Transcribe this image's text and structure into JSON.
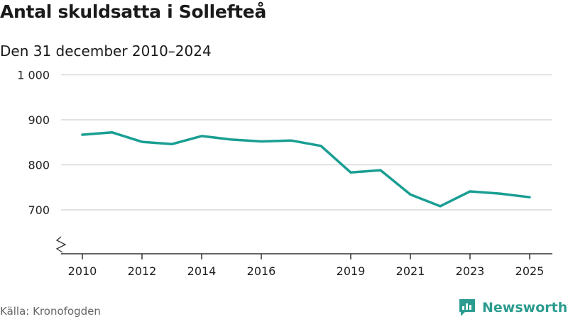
{
  "header": {
    "title": "Antal skuldsatta i Sollefteå",
    "subtitle": "Den 31 december 2010–2024"
  },
  "footer": {
    "source": "Källa: Kronofogden",
    "brand": "Newsworthy"
  },
  "colors": {
    "line": "#1a9e93",
    "grid": "#d9d9d9",
    "axis": "#333333",
    "brand": "#2b9c8f"
  },
  "chart_data": {
    "type": "line",
    "title": "Antal skuldsatta i Sollefteå",
    "subtitle": "Den 31 december 2010–2024",
    "xlabel": "",
    "ylabel": "",
    "x": [
      2010,
      2011,
      2012,
      2013,
      2014,
      2015,
      2016,
      2017,
      2018,
      2019,
      2020,
      2021,
      2022,
      2023,
      2024,
      2025
    ],
    "values": [
      867,
      872,
      851,
      846,
      864,
      856,
      852,
      854,
      842,
      783,
      788,
      734,
      708,
      741,
      736,
      728
    ],
    "xlim": [
      2010,
      2025
    ],
    "ylim": [
      600,
      1000
    ],
    "y_ticks": [
      700,
      800,
      900,
      1000
    ],
    "y_tick_labels": [
      "700",
      "800",
      "900",
      "1 000"
    ],
    "x_ticks": [
      2010,
      2012,
      2014,
      2016,
      2019,
      2021,
      2023,
      2025
    ],
    "x_tick_labels": [
      "2010",
      "2012",
      "2014",
      "2016",
      "2019",
      "2021",
      "2023",
      "2025"
    ],
    "axis_break": true,
    "grid": true
  }
}
